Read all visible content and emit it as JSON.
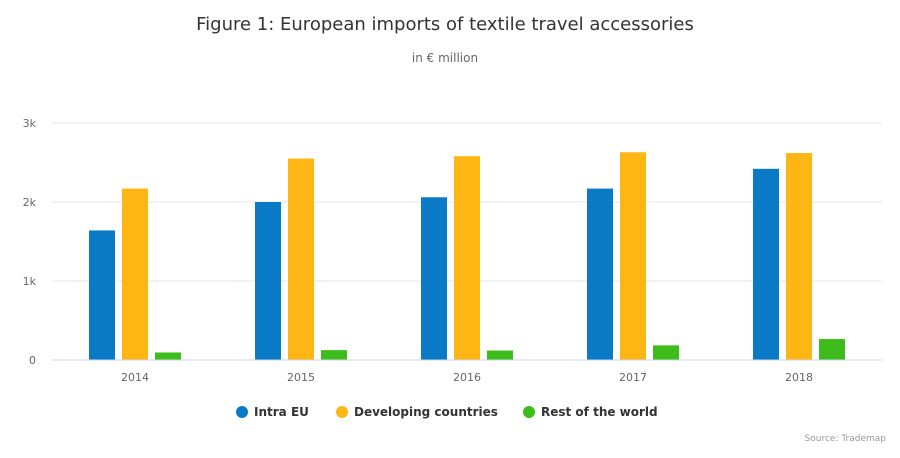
{
  "chart_data": {
    "type": "bar",
    "title": "Figure 1: European imports of textile travel accessories",
    "subtitle": "in € million",
    "categories": [
      "2014",
      "2015",
      "2016",
      "2017",
      "2018"
    ],
    "series": [
      {
        "name": "Intra EU",
        "color": "#0a7ac7",
        "values": [
          1640,
          2000,
          2060,
          2170,
          2420
        ]
      },
      {
        "name": "Developing countries",
        "color": "#fdb614",
        "values": [
          2170,
          2550,
          2580,
          2630,
          2620
        ]
      },
      {
        "name": "Rest of the world",
        "color": "#3dbc1b",
        "values": [
          95,
          125,
          120,
          185,
          265
        ]
      }
    ],
    "ylim": [
      0,
      3000
    ],
    "yticks": [
      {
        "value": 0,
        "label": "0"
      },
      {
        "value": 1000,
        "label": "1k"
      },
      {
        "value": 2000,
        "label": "2k"
      },
      {
        "value": 3000,
        "label": "3k"
      }
    ],
    "xlabel": "",
    "ylabel": "",
    "grid": true,
    "legend_position": "bottom-center",
    "credit": "Source: Trademap"
  }
}
